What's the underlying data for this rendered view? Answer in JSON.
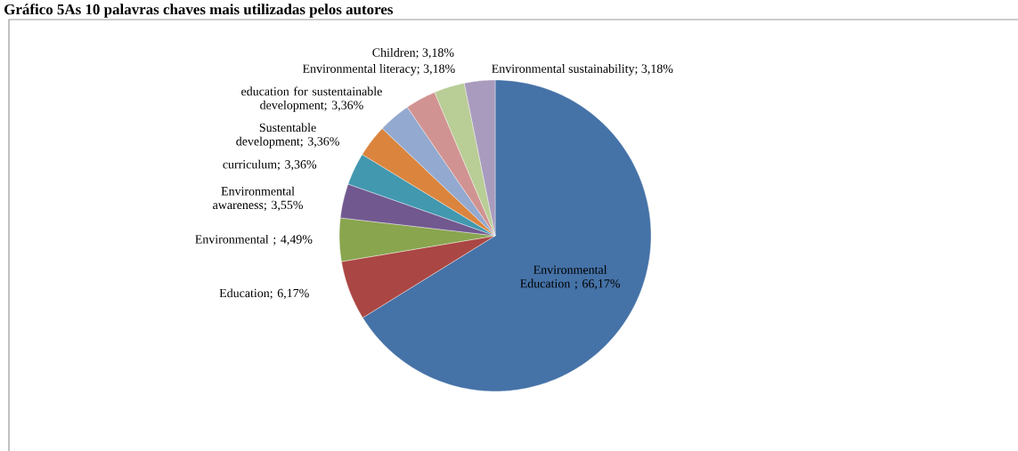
{
  "chart_data": {
    "type": "pie",
    "title": "Gráfico 5As 10 palavras chaves mais utilizadas pelos autores",
    "categories": [
      "Environmental Education ",
      "Education",
      "Environmental ",
      "Environmental awareness",
      "curriculum",
      "Sustentable development",
      "education for sustentainable development",
      "Children",
      "Environmental literacy",
      "Environmental sustainability"
    ],
    "values": [
      66.17,
      6.17,
      4.49,
      3.55,
      3.36,
      3.36,
      3.36,
      3.18,
      3.18,
      3.18
    ],
    "value_labels": [
      "; 66,17%",
      "; 6,17%",
      "; 4,49%",
      "; 3,55%",
      "; 3,36%",
      "; 3,36%",
      "; 3,36%",
      "; 3,18%",
      "; 3,18%",
      "; 3,18%"
    ],
    "colors": [
      "#4572a7",
      "#aa4643",
      "#89a54e",
      "#71588f",
      "#4198af",
      "#db843d",
      "#93a9cf",
      "#d19392",
      "#b9cd96",
      "#a99bbd"
    ]
  }
}
